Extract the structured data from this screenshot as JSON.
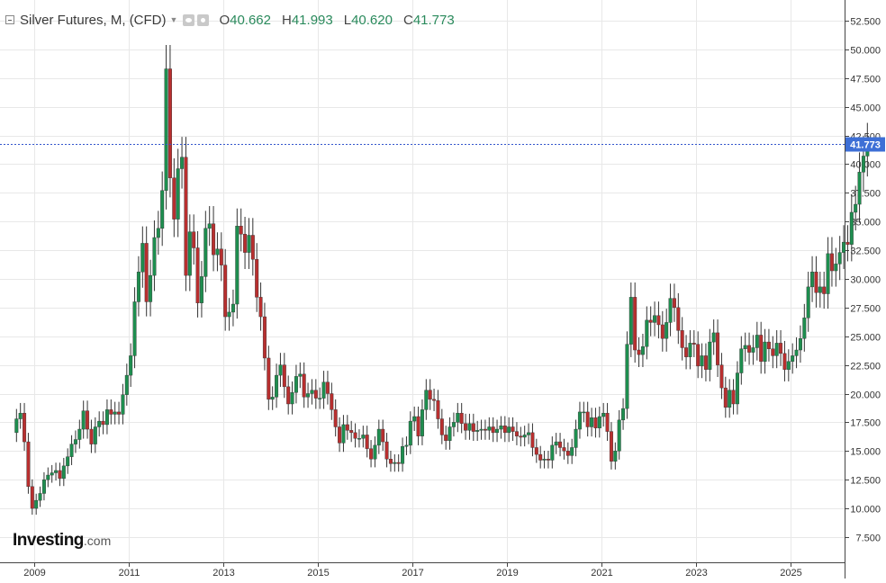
{
  "header": {
    "title": "Silver Futures, M, (CFD)",
    "open_label": "O",
    "open": "40.662",
    "high_label": "H",
    "high": "41.993",
    "low_label": "L",
    "low": "40.620",
    "close_label": "C",
    "close": "41.773"
  },
  "brand": {
    "name": "Investing",
    "suffix": ".com"
  },
  "colors": {
    "up": "#1e8e4f",
    "down": "#b82f2f",
    "grid": "#e8e8e8",
    "axis": "#444444",
    "price_line": "#3355cc",
    "price_badge": "#3d6fd6"
  },
  "chart_data": {
    "type": "candlestick",
    "title": "Silver Futures, M, (CFD)",
    "interval": "monthly",
    "x_tick_labels": [
      "2009",
      "2011",
      "2013",
      "2015",
      "2017",
      "2019",
      "2021",
      "2023",
      "2025"
    ],
    "y_tick_labels": [
      "7.500",
      "10.000",
      "12.500",
      "15.000",
      "17.500",
      "20.000",
      "22.500",
      "25.000",
      "27.500",
      "30.000",
      "32.500",
      "35.000",
      "37.500",
      "40.000",
      "42.500",
      "45.000",
      "47.500",
      "50.000",
      "52.500"
    ],
    "ylim": [
      5.3,
      54.3
    ],
    "grid": true,
    "last_price_label": "41.773",
    "last_price": 41.773,
    "start": "2008-08",
    "closes": [
      17.8,
      18.3,
      15.8,
      11.9,
      10.0,
      10.7,
      11.3,
      12.5,
      12.9,
      13.1,
      13.3,
      12.6,
      13.7,
      14.5,
      15.6,
      16.0,
      16.9,
      18.5,
      16.9,
      15.6,
      17.1,
      17.6,
      17.3,
      18.6,
      18.2,
      18.4,
      18.2,
      19.9,
      21.6,
      23.3,
      28.0,
      30.6,
      33.1,
      28.0,
      30.3,
      33.6,
      34.4,
      37.7,
      48.3,
      38.8,
      35.2,
      39.6,
      40.6,
      30.3,
      34.1,
      32.7,
      27.9,
      30.2,
      34.4,
      34.8,
      32.1,
      32.6,
      31.2,
      26.7,
      27.1,
      27.8,
      34.6,
      33.9,
      32.3,
      33.8,
      31.7,
      28.4,
      26.7,
      23.1,
      19.5,
      19.7,
      21.6,
      22.5,
      20.6,
      19.1,
      20.1,
      21.5,
      21.7,
      19.7,
      20.0,
      20.3,
      19.6,
      19.6,
      21.0,
      20.0,
      18.6,
      17.1,
      15.7,
      17.3,
      16.8,
      16.6,
      16.1,
      16.1,
      16.4,
      15.2,
      14.3,
      15.5,
      16.9,
      15.8,
      14.3,
      13.9,
      14.0,
      13.9,
      15.4,
      15.5,
      17.6,
      18.0,
      16.3,
      18.6,
      20.3,
      19.5,
      19.4,
      17.8,
      16.4,
      15.9,
      17.1,
      17.5,
      18.3,
      17.4,
      16.8,
      17.4,
      16.7,
      16.8,
      16.9,
      16.8,
      17.1,
      16.6,
      16.9,
      17.2,
      16.6,
      17.1,
      16.7,
      16.3,
      16.2,
      16.4,
      16.6,
      15.3,
      14.7,
      14.2,
      14.3,
      14.2,
      15.5,
      15.8,
      15.3,
      15.0,
      14.6,
      15.3,
      16.9,
      18.4,
      18.4,
      17.1,
      17.9,
      17.0,
      18.0,
      18.3,
      16.7,
      14.1,
      15.0,
      17.7,
      18.7,
      24.3,
      28.4,
      23.8,
      23.4,
      24.1,
      26.4,
      26.2,
      26.8,
      26.0,
      24.8,
      26.2,
      28.3,
      27.5,
      25.5,
      24.0,
      23.2,
      24.4,
      24.3,
      22.4,
      23.3,
      22.1,
      24.5,
      25.3,
      22.5,
      20.5,
      18.8,
      20.3,
      19.1,
      21.8,
      23.9,
      24.2,
      23.6,
      24.0,
      25.1,
      22.8,
      24.5,
      23.9,
      23.3,
      24.4,
      23.5,
      22.1,
      22.8,
      23.3,
      23.8,
      24.8,
      26.6,
      29.3,
      30.6,
      28.8,
      29.3,
      28.7,
      32.2,
      30.7,
      31.3,
      32.3,
      33.2,
      33.0,
      35.8,
      36.5,
      39.3,
      40.7,
      41.773
    ]
  }
}
